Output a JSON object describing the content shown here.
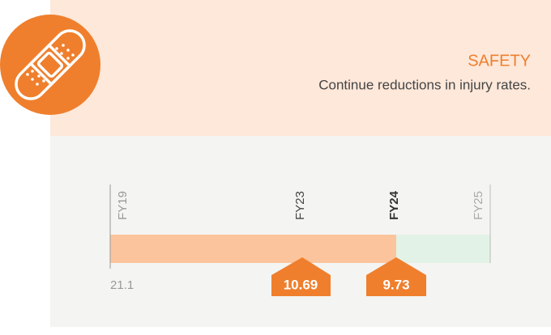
{
  "header": {
    "title": "SAFETY",
    "subtitle": "Continue reductions in injury rates."
  },
  "timeline": {
    "labels": [
      "FY19",
      "FY23",
      "FY24",
      "FY25"
    ],
    "baseline": "21.1",
    "markers": [
      "10.69",
      "9.73"
    ]
  }
}
